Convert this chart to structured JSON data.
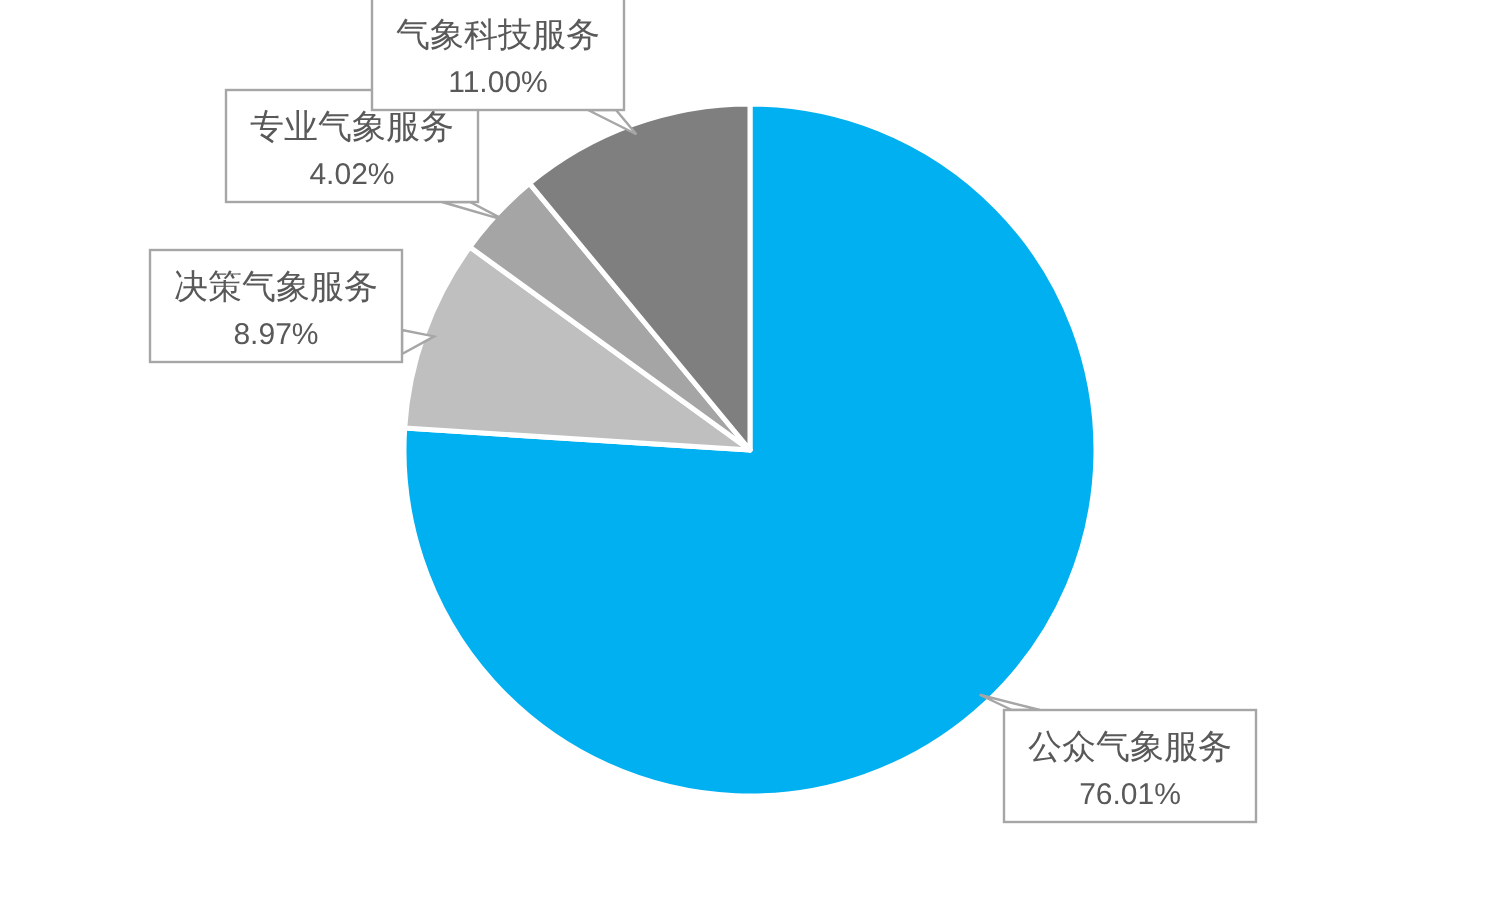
{
  "chart_data": {
    "type": "pie",
    "categories": [
      "公众气象服务",
      "决策气象服务",
      "专业气象服务",
      "气象科技服务"
    ],
    "values": [
      76.01,
      8.97,
      4.02,
      11.0
    ],
    "value_labels": [
      "76.01%",
      "8.97%",
      "4.02%",
      "11.00%"
    ],
    "colors": [
      "#00b0f0",
      "#bfbfbf",
      "#a5a5a5",
      "#7f7f7f"
    ],
    "legend": false
  }
}
